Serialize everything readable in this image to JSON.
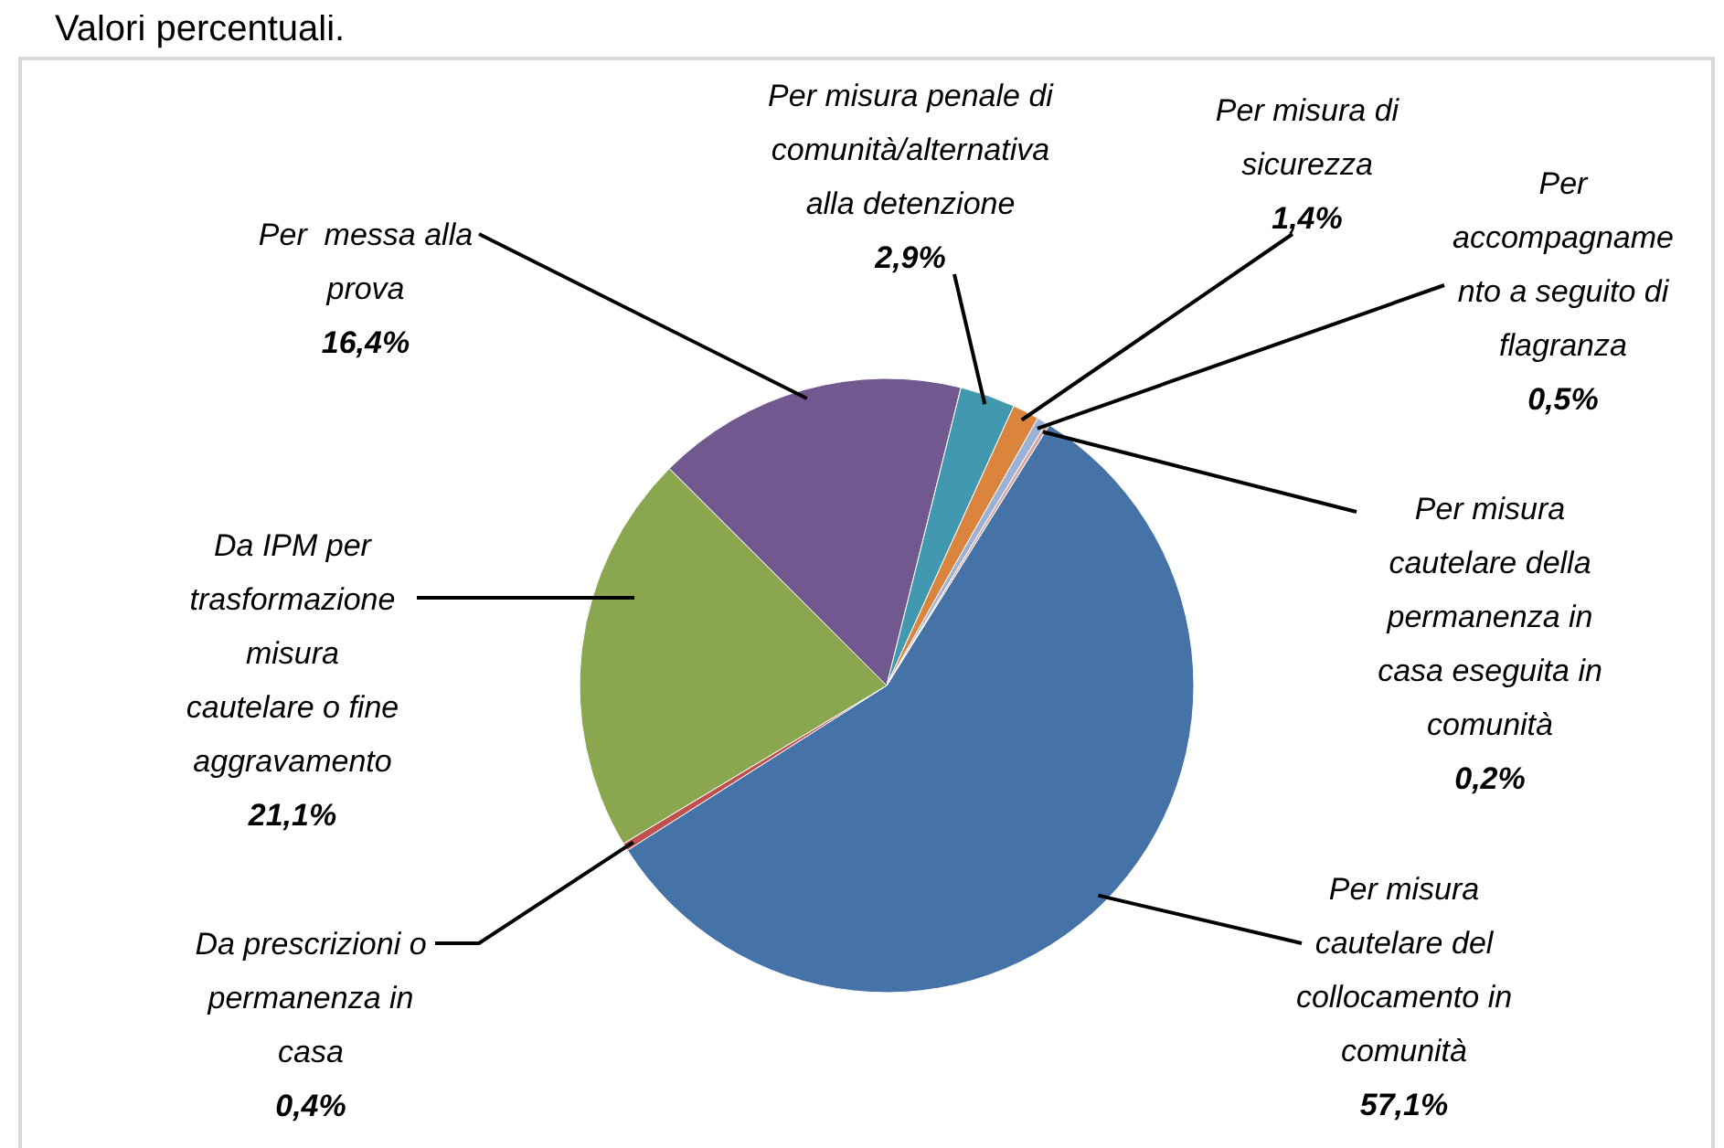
{
  "chart_data": {
    "type": "pie",
    "title": "Valori percentuali.",
    "categories": [
      "Per misura\ncautelare del\ncollocamento in\ncomunità",
      "Da prescrizioni o\npermanenza in\ncasa",
      "Da IPM per\ntrasformazione\nmisura\ncautelare o fine\naggravamento",
      "Per  messa alla\nprova",
      "Per misura penale di\ncomunità/alternativa\nalla detenzione",
      "Per misura di\nsicurezza",
      "Per\naccompagname\nnto a seguito di\nflagranza",
      "Per misura\ncautelare della\npermanenza in\ncasa eseguita in\ncomunità"
    ],
    "values": [
      57.1,
      0.4,
      21.1,
      16.4,
      2.9,
      1.4,
      0.5,
      0.2
    ],
    "value_labels": [
      "57,1%",
      "0,4%",
      "21,1%",
      "16,4%",
      "2,9%",
      "1,4%",
      "0,5%",
      "0,2%"
    ],
    "colors": [
      "#4572a7",
      "#c0504d",
      "#8aa64e",
      "#71588f",
      "#4198af",
      "#db843d",
      "#9bb1d6",
      "#d8a4a0"
    ]
  }
}
